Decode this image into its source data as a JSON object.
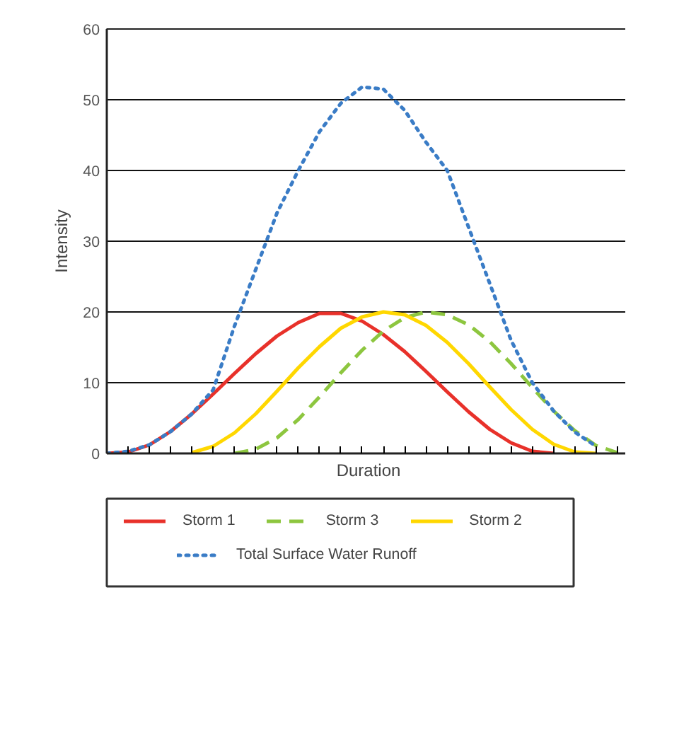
{
  "chart_data": {
    "type": "line",
    "xlabel": "Duration",
    "ylabel": "Intensity",
    "categories": [
      null,
      null,
      null,
      null,
      null,
      null,
      null,
      null,
      null,
      null,
      null,
      null,
      null,
      null,
      null,
      null,
      null,
      null,
      null,
      null,
      null,
      null,
      null,
      null,
      null
    ],
    "ylim": [
      0,
      60
    ],
    "yticks": [
      0,
      10,
      20,
      30,
      40,
      50,
      60
    ],
    "tick_labels": "y",
    "grid": "y",
    "legend": "bottom",
    "marker": "none",
    "series": [
      {
        "name": "Storm 1",
        "color": "#e8312a",
        "line_style": "solid",
        "values": [
          0,
          0.2,
          1.2,
          3.1,
          5.6,
          8.4,
          11.3,
          14.1,
          16.6,
          18.5,
          19.8,
          19.8,
          18.7,
          16.8,
          14.4,
          11.6,
          8.7,
          5.9,
          3.4,
          1.5,
          0.3,
          0,
          null,
          null,
          null
        ]
      },
      {
        "name": "Storm 3",
        "color": "#8dc63f",
        "line_style": "dashed",
        "values": [
          null,
          null,
          null,
          null,
          null,
          null,
          0,
          0.6,
          2.2,
          4.8,
          8,
          11.4,
          14.6,
          17.3,
          19.2,
          20,
          19.6,
          18.2,
          15.8,
          12.7,
          9.3,
          6,
          3.2,
          1.1,
          0.1
        ]
      },
      {
        "name": "Storm 2",
        "color": "#ffd700",
        "line_style": "solid",
        "values": [
          null,
          null,
          null,
          null,
          0.1,
          1,
          2.9,
          5.6,
          8.8,
          12.1,
          15.1,
          17.7,
          19.3,
          20,
          19.6,
          18.1,
          15.7,
          12.7,
          9.4,
          6.2,
          3.4,
          1.3,
          0.2,
          0,
          null
        ]
      },
      {
        "name": "Total Surface Water Runoff",
        "color": "#3a7cc6",
        "line_style": "dotted",
        "values": [
          0,
          0.3,
          1.2,
          3.1,
          5.6,
          9,
          18,
          26,
          34,
          40,
          45.5,
          49.5,
          51.8,
          51.5,
          48.5,
          44,
          40,
          32,
          24,
          16,
          10,
          6,
          3,
          1,
          null
        ]
      }
    ]
  }
}
